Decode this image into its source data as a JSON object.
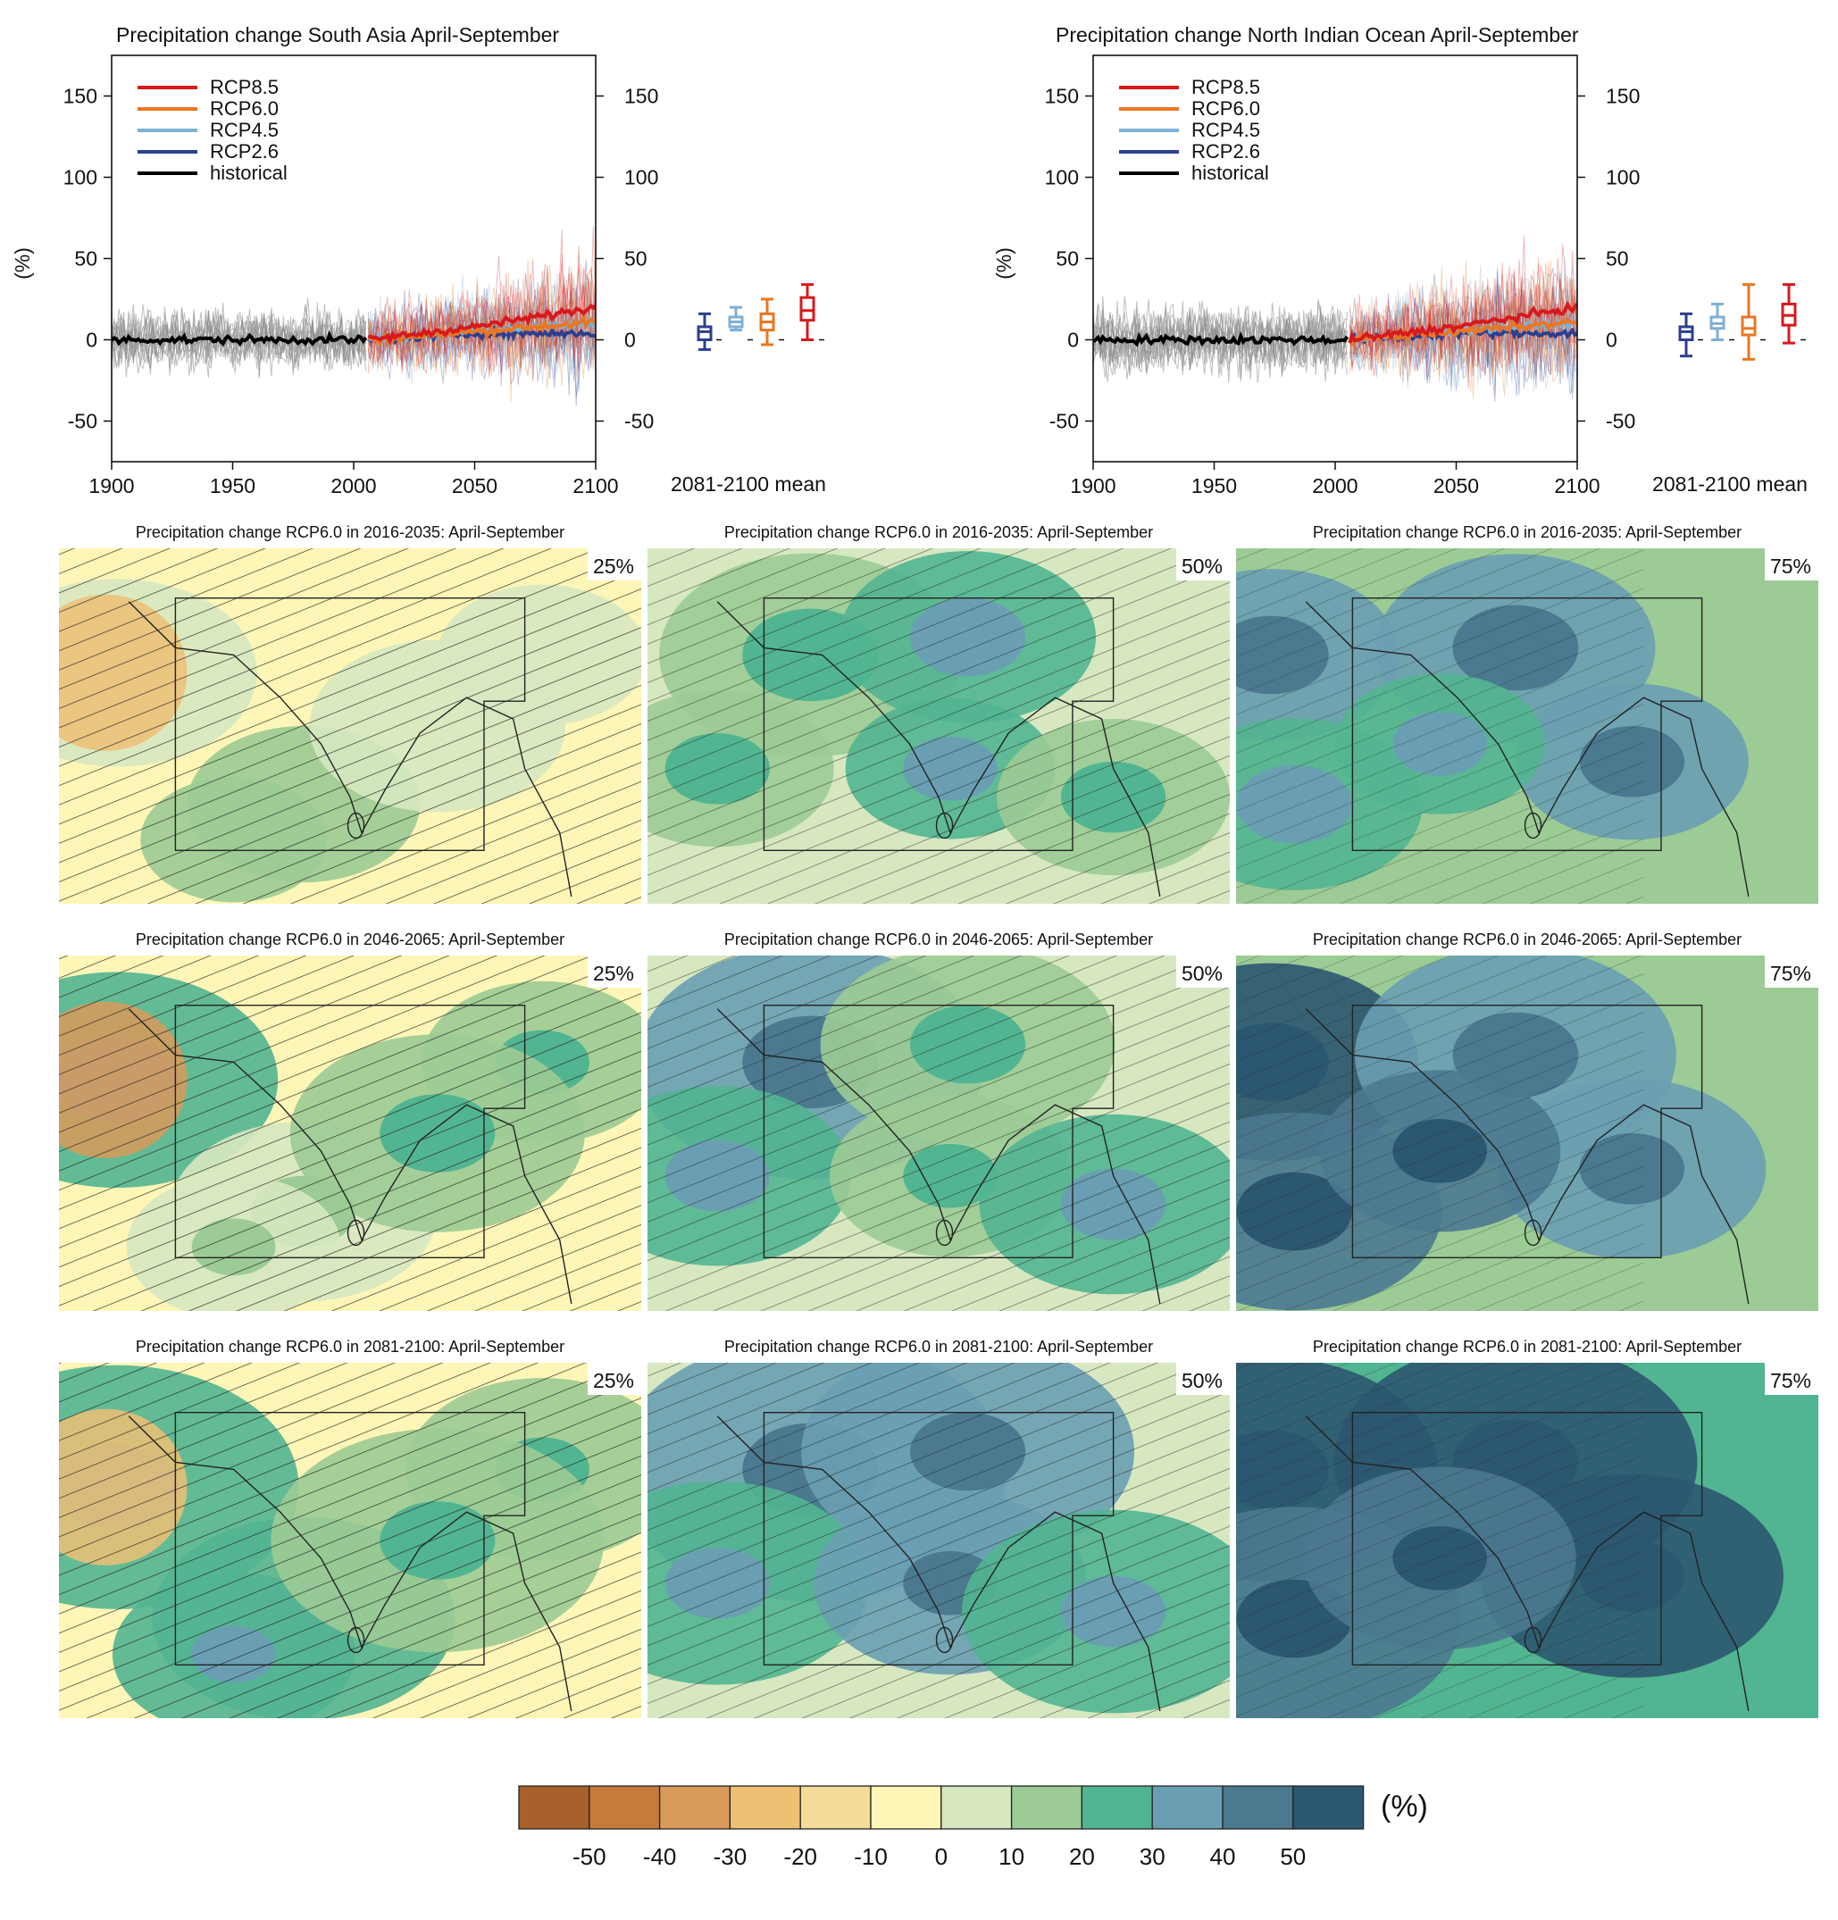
{
  "timeseries_panels": [
    {
      "title": "Precipitation change South Asia April-September",
      "ylabel": "(%)",
      "boxes_label": "2081-2100 mean",
      "boxes": [
        {
          "scenario": "RCP2.6",
          "min": -6,
          "q1": 0,
          "median": 5,
          "q3": 8,
          "max": 16
        },
        {
          "scenario": "RCP4.5",
          "min": 6,
          "q1": 8,
          "median": 11,
          "q3": 14,
          "max": 20
        },
        {
          "scenario": "RCP6.0",
          "min": -3,
          "q1": 6,
          "median": 11,
          "q3": 16,
          "max": 25
        },
        {
          "scenario": "RCP8.5",
          "min": 0,
          "q1": 12,
          "median": 18,
          "q3": 26,
          "max": 34
        }
      ]
    },
    {
      "title": "Precipitation change North Indian Ocean April-September",
      "ylabel": "(%)",
      "boxes_label": "2081-2100 mean",
      "boxes": [
        {
          "scenario": "RCP2.6",
          "min": -10,
          "q1": 0,
          "median": 5,
          "q3": 8,
          "max": 16
        },
        {
          "scenario": "RCP4.5",
          "min": 0,
          "q1": 7,
          "median": 10,
          "q3": 14,
          "max": 22
        },
        {
          "scenario": "RCP6.0",
          "min": -12,
          "q1": 3,
          "median": 7,
          "q3": 14,
          "max": 34
        },
        {
          "scenario": "RCP8.5",
          "min": -2,
          "q1": 9,
          "median": 15,
          "q3": 22,
          "max": 34
        }
      ]
    }
  ],
  "legend": [
    {
      "label": "RCP8.5",
      "color": "#d7191c"
    },
    {
      "label": "RCP6.0",
      "color": "#e87722"
    },
    {
      "label": "RCP4.5",
      "color": "#7fb0d5"
    },
    {
      "label": "RCP2.6",
      "color": "#2c3f8f"
    },
    {
      "label": "historical",
      "color": "#000000"
    }
  ],
  "chart_data": {
    "type": "line",
    "x_range": [
      1900,
      2100
    ],
    "ylim": [
      -75,
      175
    ],
    "x_ticks": [
      1900,
      1950,
      2000,
      2050,
      2100
    ],
    "y_ticks": [
      -50,
      0,
      50,
      100,
      150
    ],
    "series": [
      {
        "name": "historical",
        "x": [
          1900,
          1925,
          1950,
          1975,
          2005
        ],
        "values": [
          0,
          0,
          0,
          0,
          0
        ]
      },
      {
        "name": "RCP2.6",
        "x": [
          2006,
          2050,
          2100
        ],
        "values": [
          0,
          4,
          4
        ]
      },
      {
        "name": "RCP4.5",
        "x": [
          2006,
          2050,
          2100
        ],
        "values": [
          0,
          6,
          10
        ]
      },
      {
        "name": "RCP6.0",
        "x": [
          2006,
          2050,
          2100
        ],
        "values": [
          0,
          5,
          11
        ]
      },
      {
        "name": "RCP8.5",
        "x": [
          2006,
          2050,
          2100
        ],
        "values": [
          0,
          8,
          20
        ]
      }
    ]
  },
  "maps": {
    "rows": [
      {
        "title": "Precipitation change RCP6.0 in 2016-2035: April-September"
      },
      {
        "title": "Precipitation change RCP6.0 in 2046-2065: April-September"
      },
      {
        "title": "Precipitation change RCP6.0 in 2081-2100: April-September"
      }
    ],
    "percentiles": [
      "25%",
      "50%",
      "75%"
    ]
  },
  "colorbar": {
    "unit": "(%)",
    "colors": [
      "#a9612c",
      "#c57b3b",
      "#d99a5a",
      "#edc074",
      "#f5dc98",
      "#fef6b7",
      "#d7e8c1",
      "#9ccb95",
      "#52b591",
      "#6a9fb3",
      "#4b7990",
      "#2c5770"
    ],
    "tick_labels": [
      "-50",
      "-40",
      "-30",
      "-20",
      "-10",
      "0",
      "10",
      "20",
      "30",
      "40",
      "50"
    ]
  }
}
